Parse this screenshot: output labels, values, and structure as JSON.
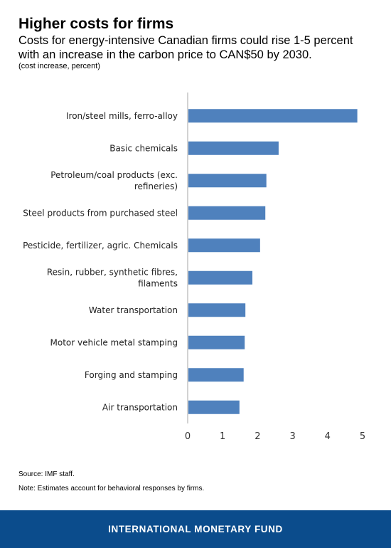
{
  "header": {
    "title": "Higher costs for firms",
    "subtitle": "Costs for energy-intensive Canadian firms could rise 1-5 percent with an increase in the carbon price to CAN$50 by 2030.",
    "unit_note": "(cost increase, percent)"
  },
  "chart_data": {
    "type": "bar",
    "orientation": "horizontal",
    "categories": [
      [
        "Iron/steel mills, ferro-alloy"
      ],
      [
        "Basic chemicals"
      ],
      [
        "Petroleum/coal products (exc.",
        "refineries)"
      ],
      [
        "Steel products from purchased steel"
      ],
      [
        "Pesticide, fertilizer, agric. Chemicals"
      ],
      [
        "Resin, rubber, synthetic fibres,",
        "filaments"
      ],
      [
        "Water transportation"
      ],
      [
        "Motor vehicle metal stamping"
      ],
      [
        "Forging and stamping"
      ],
      [
        "Air transportation"
      ]
    ],
    "values": [
      4.85,
      2.6,
      2.25,
      2.22,
      2.07,
      1.85,
      1.65,
      1.63,
      1.6,
      1.48
    ],
    "xlim": [
      0,
      5
    ],
    "xticks": [
      "0",
      "1",
      "2",
      "3",
      "4",
      "5"
    ],
    "bar_color": "#4f81bd",
    "axis_color": "#a6a6a6",
    "grid": false
  },
  "footer": {
    "source": "Source: IMF staff.",
    "note": "Note: Estimates account for behavioral responses by firms.",
    "brand": "INTERNATIONAL MONETARY FUND",
    "brand_color": "#0b4c8c"
  }
}
